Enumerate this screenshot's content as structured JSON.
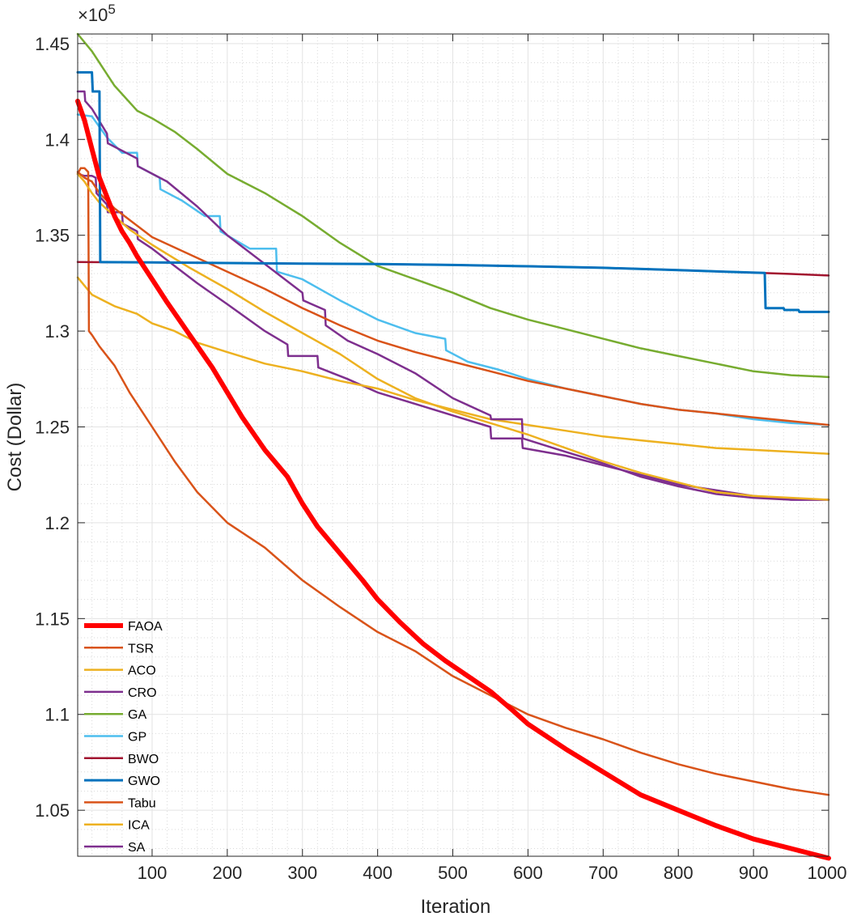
{
  "chart_data": {
    "type": "line",
    "title": "",
    "xlabel": "Iteration",
    "ylabel": "Cost (Dollar)",
    "y_exponent_label": "×10",
    "y_exponent_power": "5",
    "y_scale": 100000,
    "xlim": [
      1,
      1000
    ],
    "ylim": [
      1.026,
      1.455
    ],
    "xticks": [
      100,
      200,
      300,
      400,
      500,
      600,
      700,
      800,
      900,
      1000
    ],
    "xtick_labels": [
      "100",
      "200",
      "300",
      "400",
      "500",
      "600",
      "700",
      "800",
      "900",
      "1000"
    ],
    "yticks": [
      1.05,
      1.1,
      1.15,
      1.2,
      1.25,
      1.3,
      1.35,
      1.4,
      1.45
    ],
    "ytick_labels": [
      "1.05",
      "1.1",
      "1.15",
      "1.2",
      "1.25",
      "1.3",
      "1.35",
      "1.4",
      "1.45"
    ],
    "grid": true,
    "minor_grid": true,
    "legend_position": "bottom-left",
    "series": [
      {
        "name": "FAOA",
        "color": "#ff0000",
        "width": 6,
        "x": [
          1,
          10,
          20,
          30,
          40,
          50,
          60,
          70,
          80,
          100,
          120,
          150,
          180,
          200,
          220,
          250,
          280,
          300,
          320,
          350,
          380,
          400,
          430,
          460,
          490,
          520,
          550,
          580,
          600,
          650,
          700,
          750,
          800,
          850,
          900,
          950,
          1000
        ],
        "y": [
          1.42,
          1.41,
          1.395,
          1.38,
          1.37,
          1.36,
          1.352,
          1.346,
          1.339,
          1.327,
          1.315,
          1.298,
          1.281,
          1.268,
          1.255,
          1.238,
          1.224,
          1.21,
          1.198,
          1.184,
          1.17,
          1.16,
          1.148,
          1.137,
          1.128,
          1.12,
          1.112,
          1.102,
          1.095,
          1.082,
          1.07,
          1.058,
          1.05,
          1.042,
          1.035,
          1.03,
          1.025
        ]
      },
      {
        "name": "TSR",
        "color": "#d95319",
        "width": 2.5,
        "x": [
          1,
          10,
          20,
          30,
          50,
          70,
          100,
          150,
          200,
          250,
          300,
          350,
          400,
          450,
          500,
          550,
          600,
          650,
          700,
          750,
          800,
          850,
          900,
          950,
          1000
        ],
        "y": [
          1.383,
          1.38,
          1.378,
          1.372,
          1.364,
          1.358,
          1.349,
          1.34,
          1.331,
          1.322,
          1.312,
          1.303,
          1.295,
          1.289,
          1.284,
          1.279,
          1.274,
          1.27,
          1.266,
          1.262,
          1.259,
          1.257,
          1.255,
          1.253,
          1.251
        ]
      },
      {
        "name": "ACO",
        "color": "#edb120",
        "width": 2.5,
        "x": [
          1,
          10,
          20,
          30,
          50,
          70,
          100,
          150,
          200,
          250,
          300,
          350,
          400,
          450,
          500,
          550,
          600,
          650,
          700,
          750,
          800,
          850,
          900,
          950,
          1000
        ],
        "y": [
          1.382,
          1.378,
          1.372,
          1.367,
          1.36,
          1.353,
          1.345,
          1.333,
          1.322,
          1.31,
          1.299,
          1.288,
          1.275,
          1.265,
          1.258,
          1.252,
          1.246,
          1.239,
          1.232,
          1.226,
          1.221,
          1.216,
          1.214,
          1.213,
          1.212
        ]
      },
      {
        "name": "CRO",
        "color": "#7e2f8e",
        "width": 2.5,
        "x": [
          1,
          10,
          11,
          20,
          40,
          41,
          80,
          81,
          120,
          160,
          200,
          250,
          300,
          301,
          330,
          331,
          360,
          400,
          450,
          500,
          550,
          551,
          592,
          593,
          650,
          700,
          750,
          800,
          850,
          900,
          950,
          1000
        ],
        "y": [
          1.425,
          1.425,
          1.42,
          1.416,
          1.403,
          1.398,
          1.39,
          1.386,
          1.378,
          1.365,
          1.35,
          1.335,
          1.32,
          1.316,
          1.311,
          1.303,
          1.295,
          1.288,
          1.278,
          1.265,
          1.256,
          1.254,
          1.254,
          1.244,
          1.237,
          1.231,
          1.224,
          1.219,
          1.215,
          1.213,
          1.212,
          1.212
        ]
      },
      {
        "name": "GA",
        "color": "#77ac30",
        "width": 2.5,
        "x": [
          1,
          20,
          50,
          80,
          100,
          130,
          160,
          200,
          250,
          300,
          350,
          400,
          450,
          500,
          550,
          600,
          650,
          700,
          750,
          800,
          850,
          900,
          950,
          1000
        ],
        "y": [
          1.455,
          1.446,
          1.428,
          1.415,
          1.411,
          1.404,
          1.395,
          1.382,
          1.372,
          1.36,
          1.346,
          1.334,
          1.327,
          1.32,
          1.312,
          1.306,
          1.301,
          1.296,
          1.291,
          1.287,
          1.283,
          1.279,
          1.277,
          1.276
        ]
      },
      {
        "name": "GP",
        "color": "#4dbeee",
        "width": 2.5,
        "x": [
          1,
          20,
          40,
          60,
          80,
          81,
          110,
          111,
          140,
          170,
          190,
          191,
          230,
          265,
          266,
          300,
          350,
          400,
          450,
          490,
          491,
          520,
          560,
          600,
          650,
          700,
          750,
          800,
          850,
          900,
          950,
          1000
        ],
        "y": [
          1.413,
          1.412,
          1.401,
          1.393,
          1.393,
          1.386,
          1.38,
          1.374,
          1.368,
          1.36,
          1.36,
          1.352,
          1.343,
          1.343,
          1.331,
          1.327,
          1.316,
          1.306,
          1.299,
          1.296,
          1.29,
          1.284,
          1.28,
          1.275,
          1.27,
          1.266,
          1.262,
          1.259,
          1.257,
          1.254,
          1.252,
          1.251
        ]
      },
      {
        "name": "BWO",
        "color": "#a2142f",
        "width": 2.5,
        "x": [
          1,
          100,
          200,
          300,
          400,
          500,
          600,
          700,
          800,
          900,
          950,
          1000
        ],
        "y": [
          1.336,
          1.3358,
          1.3355,
          1.3352,
          1.335,
          1.3345,
          1.3338,
          1.333,
          1.3318,
          1.3305,
          1.3298,
          1.329
        ]
      },
      {
        "name": "GWO",
        "color": "#0072bd",
        "width": 3,
        "x": [
          1,
          10,
          20,
          21,
          30,
          31,
          100,
          200,
          300,
          400,
          500,
          600,
          700,
          800,
          915,
          916,
          940,
          941,
          960,
          961,
          1000
        ],
        "y": [
          1.435,
          1.435,
          1.435,
          1.425,
          1.425,
          1.336,
          1.3358,
          1.3355,
          1.3352,
          1.335,
          1.3345,
          1.3338,
          1.333,
          1.3318,
          1.3303,
          1.312,
          1.312,
          1.311,
          1.311,
          1.31,
          1.31
        ]
      },
      {
        "name": "Tabu",
        "color": "#d95319",
        "width": 2.5,
        "x": [
          1,
          5,
          10,
          15,
          16,
          20,
          30,
          50,
          70,
          100,
          130,
          160,
          200,
          250,
          300,
          350,
          400,
          450,
          500,
          550,
          600,
          650,
          700,
          750,
          800,
          850,
          900,
          950,
          1000
        ],
        "y": [
          1.382,
          1.385,
          1.385,
          1.383,
          1.3,
          1.298,
          1.292,
          1.282,
          1.268,
          1.25,
          1.232,
          1.216,
          1.2,
          1.187,
          1.17,
          1.156,
          1.143,
          1.133,
          1.12,
          1.11,
          1.1,
          1.093,
          1.087,
          1.08,
          1.074,
          1.069,
          1.065,
          1.061,
          1.058
        ]
      },
      {
        "name": "ICA",
        "color": "#edb120",
        "width": 2.5,
        "x": [
          1,
          20,
          50,
          80,
          100,
          130,
          160,
          200,
          250,
          300,
          350,
          400,
          450,
          500,
          550,
          600,
          650,
          700,
          750,
          800,
          850,
          900,
          950,
          1000
        ],
        "y": [
          1.328,
          1.319,
          1.313,
          1.309,
          1.304,
          1.3,
          1.294,
          1.289,
          1.283,
          1.279,
          1.274,
          1.27,
          1.264,
          1.259,
          1.254,
          1.251,
          1.248,
          1.245,
          1.243,
          1.241,
          1.239,
          1.238,
          1.237,
          1.236
        ]
      },
      {
        "name": "SA",
        "color": "#7e2f8e",
        "width": 2.5,
        "x": [
          1,
          10,
          20,
          25,
          26,
          40,
          41,
          60,
          61,
          80,
          81,
          100,
          130,
          160,
          200,
          250,
          280,
          281,
          320,
          321,
          360,
          400,
          450,
          500,
          550,
          551,
          592,
          593,
          650,
          700,
          750,
          800,
          850,
          900,
          950,
          1000
        ],
        "y": [
          1.382,
          1.381,
          1.381,
          1.38,
          1.372,
          1.366,
          1.362,
          1.362,
          1.356,
          1.352,
          1.348,
          1.343,
          1.334,
          1.325,
          1.314,
          1.3,
          1.293,
          1.287,
          1.287,
          1.281,
          1.275,
          1.268,
          1.262,
          1.256,
          1.25,
          1.244,
          1.244,
          1.239,
          1.235,
          1.23,
          1.225,
          1.22,
          1.217,
          1.214,
          1.212,
          1.212
        ]
      }
    ]
  }
}
